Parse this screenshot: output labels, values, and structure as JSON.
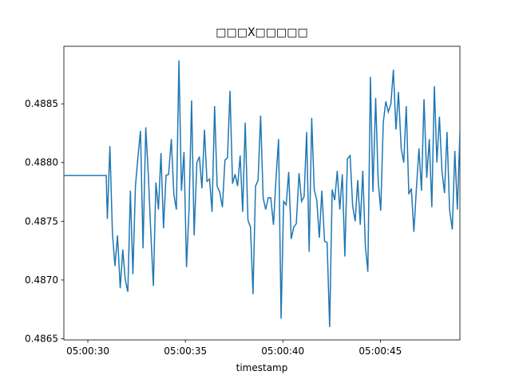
{
  "chart_data": {
    "type": "line",
    "title": "□□□X□□□□□",
    "xlabel": "timestamp",
    "color": "#1f77b4",
    "xlim": [
      "05:00:28.77",
      "05:00:49.08"
    ],
    "xticks": [
      "05:00:30",
      "05:00:35",
      "05:00:40",
      "05:00:45"
    ],
    "ylim": [
      0.48649,
      0.48899
    ],
    "yticks": [
      0.4865,
      {
        "value": 0.487,
        "label": "0.4870"
      },
      0.4875,
      {
        "value": 0.488,
        "label": "0.4880"
      },
      0.4885
    ],
    "x": [
      "05:00:28.77",
      "05:00:30.94",
      "05:00:31.00",
      "05:00:31.13",
      "05:00:31.26",
      "05:00:31.39",
      "05:00:31.52",
      "05:00:31.66",
      "05:00:31.79",
      "05:00:31.92",
      "05:00:32.05",
      "05:00:32.18",
      "05:00:32.31",
      "05:00:32.44",
      "05:00:32.57",
      "05:00:32.70",
      "05:00:32.83",
      "05:00:32.97",
      "05:00:33.10",
      "05:00:33.23",
      "05:00:33.36",
      "05:00:33.49",
      "05:00:33.62",
      "05:00:33.75",
      "05:00:33.88",
      "05:00:34.01",
      "05:00:34.14",
      "05:00:34.28",
      "05:00:34.41",
      "05:00:34.54",
      "05:00:34.67",
      "05:00:34.80",
      "05:00:34.93",
      "05:00:35.06",
      "05:00:35.19",
      "05:00:35.32",
      "05:00:35.45",
      "05:00:35.59",
      "05:00:35.72",
      "05:00:35.85",
      "05:00:35.98",
      "05:00:36.11",
      "05:00:36.24",
      "05:00:36.37",
      "05:00:36.50",
      "05:00:36.63",
      "05:00:36.76",
      "05:00:36.90",
      "05:00:37.03",
      "05:00:37.16",
      "05:00:37.29",
      "05:00:37.42",
      "05:00:37.55",
      "05:00:37.68",
      "05:00:37.81",
      "05:00:37.94",
      "05:00:38.07",
      "05:00:38.21",
      "05:00:38.34",
      "05:00:38.47",
      "05:00:38.60",
      "05:00:38.73",
      "05:00:38.86",
      "05:00:38.99",
      "05:00:39.12",
      "05:00:39.25",
      "05:00:39.38",
      "05:00:39.52",
      "05:00:39.65",
      "05:00:39.78",
      "05:00:39.91",
      "05:00:40.04",
      "05:00:40.17",
      "05:00:40.30",
      "05:00:40.43",
      "05:00:40.56",
      "05:00:40.69",
      "05:00:40.83",
      "05:00:40.96",
      "05:00:41.09",
      "05:00:41.22",
      "05:00:41.35",
      "05:00:41.48",
      "05:00:41.61",
      "05:00:41.74",
      "05:00:41.87",
      "05:00:42.00",
      "05:00:42.14",
      "05:00:42.27",
      "05:00:42.40",
      "05:00:42.53",
      "05:00:42.66",
      "05:00:42.79",
      "05:00:42.92",
      "05:00:43.05",
      "05:00:43.18",
      "05:00:43.31",
      "05:00:43.45",
      "05:00:43.58",
      "05:00:43.71",
      "05:00:43.84",
      "05:00:43.97",
      "05:00:44.10",
      "05:00:44.23",
      "05:00:44.36",
      "05:00:44.49",
      "05:00:44.62",
      "05:00:44.76",
      "05:00:44.89",
      "05:00:45.02",
      "05:00:45.15",
      "05:00:45.28",
      "05:00:45.41",
      "05:00:45.54",
      "05:00:45.67",
      "05:00:45.80",
      "05:00:45.93",
      "05:00:46.07",
      "05:00:46.20",
      "05:00:46.33",
      "05:00:46.46",
      "05:00:46.59",
      "05:00:46.72",
      "05:00:46.85",
      "05:00:46.98",
      "05:00:47.11",
      "05:00:47.24",
      "05:00:47.38",
      "05:00:47.51",
      "05:00:47.64",
      "05:00:47.77",
      "05:00:47.90",
      "05:00:48.03",
      "05:00:48.16",
      "05:00:48.29",
      "05:00:48.42",
      "05:00:48.55",
      "05:00:48.69",
      "05:00:48.82",
      "05:00:48.95",
      "05:00:49.08"
    ],
    "values": [
      0.48789,
      0.48789,
      0.48752,
      0.48814,
      0.4874,
      0.48712,
      0.48738,
      0.48693,
      0.48726,
      0.487,
      0.4869,
      0.48776,
      0.48705,
      0.4878,
      0.48805,
      0.48827,
      0.48727,
      0.4883,
      0.4879,
      0.4874,
      0.48695,
      0.48783,
      0.4876,
      0.48808,
      0.48744,
      0.48789,
      0.4879,
      0.4882,
      0.48773,
      0.4876,
      0.48887,
      0.48776,
      0.48809,
      0.48711,
      0.4876,
      0.48853,
      0.48738,
      0.488,
      0.48805,
      0.48778,
      0.48828,
      0.48784,
      0.48786,
      0.48758,
      0.48848,
      0.4878,
      0.48775,
      0.48762,
      0.48802,
      0.48804,
      0.48861,
      0.48782,
      0.4879,
      0.4878,
      0.48806,
      0.48758,
      0.48834,
      0.48751,
      0.48745,
      0.48688,
      0.4878,
      0.48785,
      0.4884,
      0.4877,
      0.4876,
      0.4877,
      0.4877,
      0.48747,
      0.48787,
      0.4882,
      0.48667,
      0.48767,
      0.48764,
      0.48792,
      0.48735,
      0.48745,
      0.48748,
      0.48791,
      0.48767,
      0.48771,
      0.48826,
      0.48724,
      0.48838,
      0.48777,
      0.48768,
      0.48736,
      0.48776,
      0.48733,
      0.48732,
      0.4866,
      0.48777,
      0.48768,
      0.48793,
      0.4876,
      0.4879,
      0.4872,
      0.48803,
      0.48806,
      0.48763,
      0.4875,
      0.48785,
      0.48747,
      0.48793,
      0.48729,
      0.48707,
      0.48873,
      0.48775,
      0.48855,
      0.48784,
      0.48759,
      0.48834,
      0.48852,
      0.48843,
      0.4885,
      0.48879,
      0.48828,
      0.4886,
      0.48812,
      0.488,
      0.48848,
      0.48773,
      0.48778,
      0.48741,
      0.48778,
      0.48812,
      0.48776,
      0.48854,
      0.48787,
      0.4882,
      0.48762,
      0.48865,
      0.488,
      0.48839,
      0.48793,
      0.48774,
      0.48826,
      0.4876,
      0.48743,
      0.4881,
      0.4876,
      0.48826
    ]
  }
}
